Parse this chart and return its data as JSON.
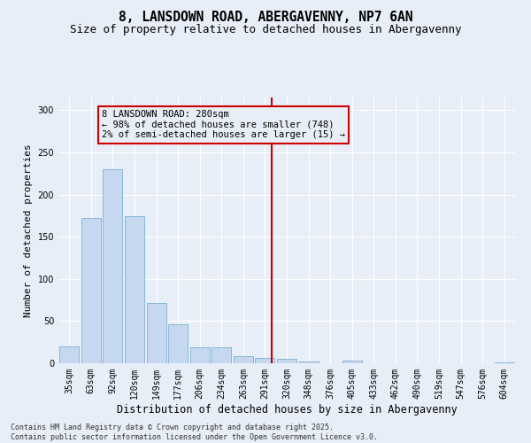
{
  "title": "8, LANSDOWN ROAD, ABERGAVENNY, NP7 6AN",
  "subtitle": "Size of property relative to detached houses in Abergavenny",
  "xlabel": "Distribution of detached houses by size in Abergavenny",
  "ylabel": "Number of detached properties",
  "bar_color": "#c5d8f0",
  "bar_edge_color": "#7aafd4",
  "background_color": "#e8eef7",
  "grid_color": "#ffffff",
  "annotation_line_color": "#cc0000",
  "annotation_box_color": "#cc0000",
  "annotation_text": "8 LANSDOWN ROAD: 280sqm\n← 98% of detached houses are smaller (748)\n2% of semi-detached houses are larger (15) →",
  "categories": [
    "35sqm",
    "63sqm",
    "92sqm",
    "120sqm",
    "149sqm",
    "177sqm",
    "206sqm",
    "234sqm",
    "263sqm",
    "291sqm",
    "320sqm",
    "348sqm",
    "376sqm",
    "405sqm",
    "433sqm",
    "462sqm",
    "490sqm",
    "519sqm",
    "547sqm",
    "576sqm",
    "604sqm"
  ],
  "bar_heights": [
    20,
    172,
    230,
    174,
    71,
    46,
    19,
    19,
    8,
    6,
    5,
    2,
    0,
    3,
    0,
    0,
    0,
    0,
    0,
    0,
    1
  ],
  "ylim": [
    0,
    315
  ],
  "yticks": [
    0,
    50,
    100,
    150,
    200,
    250,
    300
  ],
  "vline_position": 9.3,
  "footer_text": "Contains HM Land Registry data © Crown copyright and database right 2025.\nContains public sector information licensed under the Open Government Licence v3.0.",
  "annotation_fontsize": 7.5,
  "title_fontsize": 10.5,
  "subtitle_fontsize": 9,
  "xlabel_fontsize": 8.5,
  "ylabel_fontsize": 8,
  "tick_fontsize": 7
}
